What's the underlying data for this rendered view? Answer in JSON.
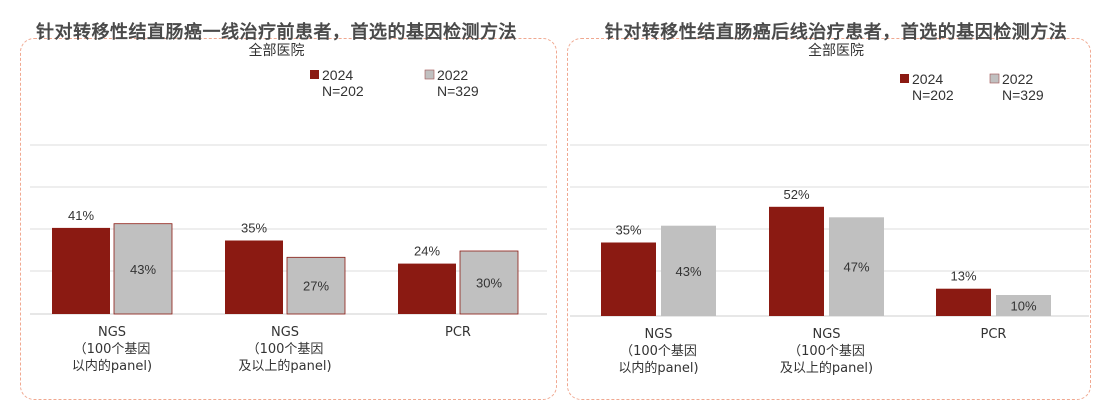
{
  "colors": {
    "c2024": "#8b1a12",
    "c2022": "#c0c0c0",
    "grid": "#dcdcdc"
  },
  "chart_data": [
    {
      "type": "bar",
      "title": "针对转移性结直肠癌一线治疗前患者，首选的基因检测方法",
      "subtitle": "全部医院",
      "categories": [
        [
          "NGS",
          "（100个基因",
          "以内的panel)"
        ],
        [
          "NGS",
          "（100个基因",
          "及以上的panel)"
        ],
        [
          "PCR"
        ]
      ],
      "series": [
        {
          "name": "2024",
          "n": "N=202",
          "values": [
            41,
            35,
            24
          ],
          "labels": [
            "41%",
            "35%",
            "24%"
          ]
        },
        {
          "name": "2022",
          "n": "N=329",
          "values": [
            43,
            27,
            30
          ],
          "labels": [
            "43%",
            "27%",
            "30%"
          ]
        }
      ],
      "ylim": [
        0,
        70
      ],
      "grid": true,
      "legend": "top-right"
    },
    {
      "type": "bar",
      "title": "针对转移性结直肠癌后线治疗患者，首选的基因检测方法",
      "subtitle": "全部医院",
      "categories": [
        [
          "NGS",
          "（100个基因",
          "以内的panel)"
        ],
        [
          "NGS",
          "（100个基因",
          "及以上的panel)"
        ],
        [
          "PCR"
        ]
      ],
      "series": [
        {
          "name": "2024",
          "n": "N=202",
          "values": [
            35,
            52,
            13
          ],
          "labels": [
            "35%",
            "52%",
            "13%"
          ]
        },
        {
          "name": "2022",
          "n": "N=329",
          "values": [
            43,
            47,
            10
          ],
          "labels": [
            "43%",
            "47%",
            "10%"
          ]
        }
      ],
      "ylim": [
        0,
        70
      ],
      "grid": true,
      "legend": "top-right"
    }
  ]
}
